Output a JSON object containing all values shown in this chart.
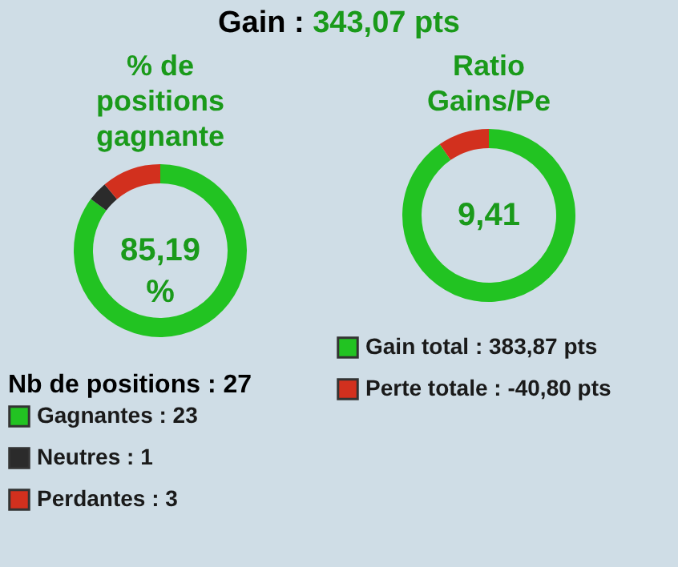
{
  "chart_data": [
    {
      "type": "other",
      "title": "Gain :",
      "annotations": [
        "343,07 pts"
      ]
    },
    {
      "type": "donut",
      "title": "% de positions gagnante",
      "categories": [
        "Gagnantes : 23",
        "Neutres : 1",
        "Perdantes : 3"
      ],
      "values": [
        23,
        1,
        3
      ],
      "colors": [
        "#22c322",
        "#2b2b2b",
        "#d2301e"
      ],
      "legend": "bottom",
      "legend_title": "Nb de positions : 27",
      "annotations": [
        "85,19 %"
      ]
    },
    {
      "type": "donut",
      "title": "Ratio Gains/Pe",
      "categories": [
        "Gain total : 383,87 pts",
        "Perte totale : -40,80 pts"
      ],
      "values": [
        383.87,
        40.8
      ],
      "colors": [
        "#22c322",
        "#d2301e"
      ],
      "legend": "bottom",
      "annotations": [
        "9,41"
      ]
    }
  ]
}
